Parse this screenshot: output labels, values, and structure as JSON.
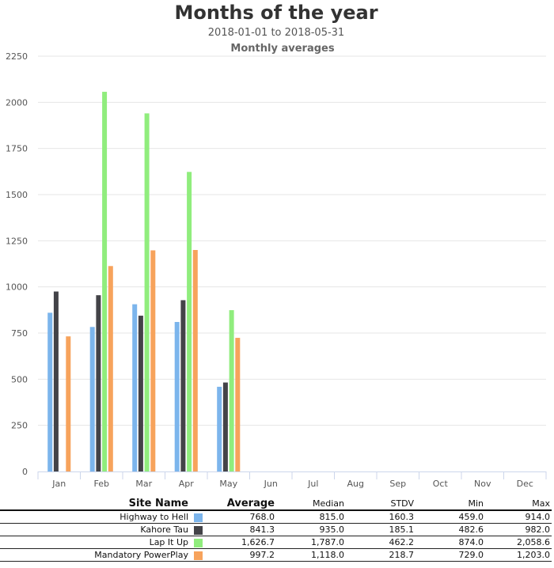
{
  "chart_data": {
    "type": "bar",
    "title": "Months of the year",
    "subtitle": "2018-01-01 to 2018-05-31",
    "subtitle2": "Monthly averages",
    "xlabel": "",
    "ylabel": "",
    "categories": [
      "Jan",
      "Feb",
      "Mar",
      "Apr",
      "May",
      "Jun",
      "Jul",
      "Aug",
      "Sep",
      "Oct",
      "Nov",
      "Dec"
    ],
    "ylim": [
      0,
      2250
    ],
    "yticks": [
      0,
      250,
      500,
      750,
      1000,
      1250,
      1500,
      1750,
      2000,
      2250
    ],
    "grid": true,
    "series": [
      {
        "color": "#7cb5ec",
        "values": [
          860,
          783,
          906,
          810,
          459,
          null,
          null,
          null,
          null,
          null,
          null,
          null
        ]
      },
      {
        "color": "#434348",
        "values": [
          975,
          955,
          844,
          928,
          482,
          null,
          null,
          null,
          null,
          null,
          null,
          null
        ]
      },
      {
        "color": "#90ed7d",
        "values": [
          null,
          2057,
          1940,
          1623,
          874,
          null,
          null,
          null,
          null,
          null,
          null,
          null
        ]
      },
      {
        "color": "#f7a35c",
        "values": [
          732,
          1113,
          1198,
          1200,
          724,
          null,
          null,
          null,
          null,
          null,
          null,
          null
        ]
      }
    ]
  },
  "table": {
    "headers": {
      "site": "Site Name",
      "average": "Average",
      "median": "Median",
      "stdv": "STDV",
      "min": "Min",
      "max": "Max"
    },
    "rows": [
      {
        "site": "Highway to Hell",
        "color": "#7cb5ec",
        "average": "768.0",
        "median": "815.0",
        "stdv": "160.3",
        "min": "459.0",
        "max": "914.0"
      },
      {
        "site": "Kahore Tau",
        "color": "#434348",
        "average": "841.3",
        "median": "935.0",
        "stdv": "185.1",
        "min": "482.6",
        "max": "982.0"
      },
      {
        "site": "Lap It Up",
        "color": "#90ed7d",
        "average": "1,626.7",
        "median": "1,787.0",
        "stdv": "462.2",
        "min": "874.0",
        "max": "2,058.6"
      },
      {
        "site": "Mandatory PowerPlay",
        "color": "#f7a35c",
        "average": "997.2",
        "median": "1,118.0",
        "stdv": "218.7",
        "min": "729.0",
        "max": "1,203.0"
      }
    ]
  }
}
